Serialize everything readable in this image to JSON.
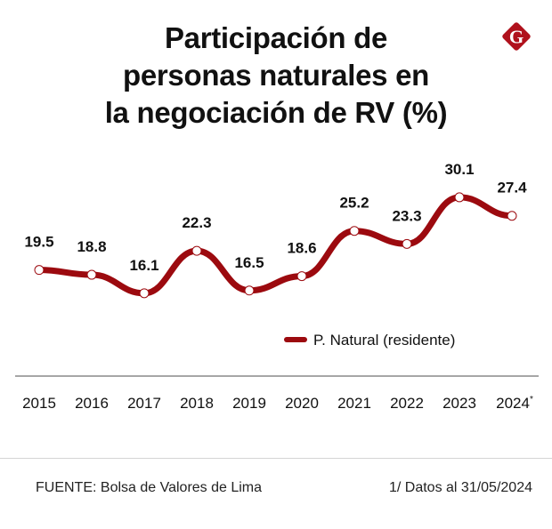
{
  "title_lines": [
    "Participación de",
    "personas naturales en",
    "la negociación de RV (%)"
  ],
  "logo": {
    "icon": "diario-gestion-g-logo-icon",
    "letter": "G",
    "color": "#b0111c"
  },
  "colors": {
    "line": "#9c0a0f",
    "marker_fill": "#ffffff",
    "axis": "#888888",
    "text": "#111111"
  },
  "chart_data": {
    "type": "line",
    "title": "Participación de personas naturales en la negociación de RV (%)",
    "xlabel": "",
    "ylabel": "",
    "categories": [
      "2015",
      "2016",
      "2017",
      "2018",
      "2019",
      "2020",
      "2021",
      "2022",
      "2023",
      "2024"
    ],
    "category_suffix": {
      "2024": "*"
    },
    "series": [
      {
        "name": "P. Natural (residente)",
        "values": [
          19.5,
          18.8,
          16.1,
          22.3,
          16.5,
          18.6,
          25.2,
          23.3,
          30.1,
          27.4
        ]
      }
    ],
    "data_labels": [
      "19.5",
      "18.8",
      "16.1",
      "22.3",
      "16.5",
      "18.6",
      "25.2",
      "23.3",
      "30.1",
      "27.4"
    ],
    "ylim": [
      0,
      32
    ],
    "grid": false,
    "legend": {
      "position": "bottom-right",
      "entries": [
        "P. Natural (residente)"
      ]
    }
  },
  "footer": {
    "source": "FUENTE:  Bolsa de Valores de Lima",
    "note": "1/ Datos al 31/05/2024"
  }
}
